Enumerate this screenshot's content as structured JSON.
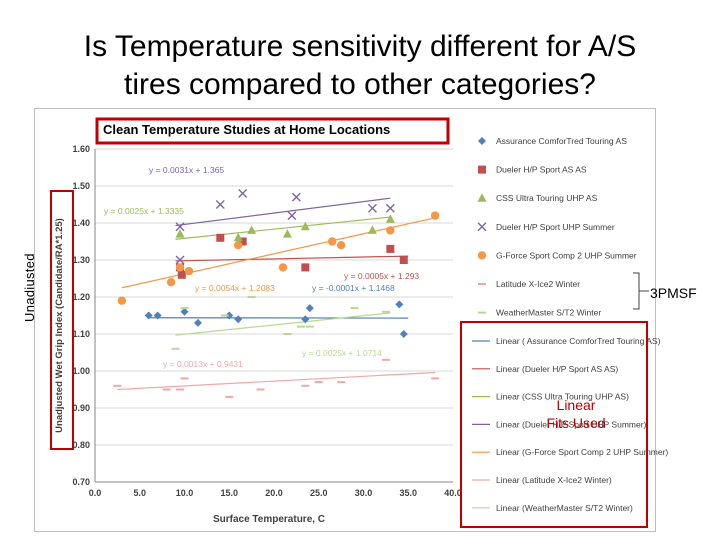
{
  "slide": {
    "title_line1": "Is Temperature sensitivity different for A/S",
    "title_line2": "tires compared to other categories?",
    "side_label": "Unadjusted",
    "callout_3pmsf": "3PMSF",
    "callout_linear_line1": "Linear",
    "callout_linear_line2": "Fits Used"
  },
  "chart_data": {
    "type": "scatter",
    "title": "Clean Temperature Studies at Home Locations",
    "xlabel": "Surface Temperature, C",
    "ylabel": "Unadjusted Wet Grip Index (Candidate/RA*1.25)",
    "xlim": [
      0,
      40
    ],
    "ylim": [
      0.7,
      1.6
    ],
    "xticks": [
      "0.0",
      "5.0",
      "10.0",
      "15.0",
      "20.0",
      "25.0",
      "30.0",
      "35.0",
      "40.0"
    ],
    "yticks": [
      "0.70",
      "0.80",
      "0.90",
      "1.00",
      "1.10",
      "1.20",
      "1.30",
      "1.40",
      "1.50",
      "1.60"
    ],
    "gridlines": "horizontal",
    "series": [
      {
        "name": "Assurance ComforTred Touring AS",
        "color": "#4f81bd",
        "marker": "diamond",
        "x": [
          6.0,
          7.0,
          10.0,
          11.5,
          15.0,
          16.0,
          23.5,
          24.0,
          34.0,
          34.5
        ],
        "y": [
          1.15,
          1.15,
          1.16,
          1.13,
          1.15,
          1.14,
          1.14,
          1.17,
          1.18,
          1.1
        ]
      },
      {
        "name": "Dueler H/P Sport AS AS",
        "color": "#c0504d",
        "marker": "square",
        "x": [
          9.5,
          9.7,
          14.0,
          16.5,
          23.5,
          33.0,
          34.5
        ],
        "y": [
          1.28,
          1.26,
          1.36,
          1.35,
          1.28,
          1.33,
          1.3
        ]
      },
      {
        "name": "CSS Ultra Touring UHP AS",
        "color": "#9bbb59",
        "marker": "triangle",
        "x": [
          9.5,
          16.0,
          17.5,
          21.5,
          23.5,
          31.0,
          33.0
        ],
        "y": [
          1.37,
          1.36,
          1.38,
          1.37,
          1.39,
          1.38,
          1.41
        ]
      },
      {
        "name": "Dueler H/P Sport UHP Summer",
        "color": "#8064a2",
        "marker": "x",
        "x": [
          9.5,
          9.5,
          14.0,
          16.5,
          22.0,
          22.5,
          31.0,
          33.0
        ],
        "y": [
          1.39,
          1.3,
          1.45,
          1.48,
          1.42,
          1.47,
          1.44,
          1.44
        ]
      },
      {
        "name": "G-Force Sport Comp 2 UHP Summer",
        "color": "#f79646",
        "marker": "circle",
        "x": [
          3.0,
          8.5,
          9.5,
          10.5,
          16.0,
          21.0,
          26.5,
          27.5,
          33.0,
          38.0
        ],
        "y": [
          1.19,
          1.24,
          1.28,
          1.27,
          1.34,
          1.28,
          1.35,
          1.34,
          1.38,
          1.42
        ]
      },
      {
        "name": "Latitude X-Ice2 Winter",
        "color": "#f2a7a7",
        "marker": "dash",
        "x": [
          2.5,
          8.0,
          9.5,
          10.0,
          15.0,
          18.5,
          23.5,
          25.0,
          27.5,
          32.5,
          38.0
        ],
        "y": [
          0.96,
          0.95,
          0.95,
          0.98,
          0.93,
          0.95,
          0.96,
          0.97,
          0.97,
          1.03,
          0.98
        ]
      },
      {
        "name": "WeatherMaster S/T2 Winter",
        "color": "#b8d98f",
        "marker": "dash",
        "x": [
          9.0,
          10.0,
          14.5,
          17.5,
          21.5,
          23.0,
          24.0,
          29.0,
          32.5
        ],
        "y": [
          1.06,
          1.17,
          1.15,
          1.2,
          1.1,
          1.12,
          1.12,
          1.17,
          1.16
        ]
      }
    ],
    "fit_lines": [
      {
        "name": "Linear ( Assurance ComforTred Touring AS)",
        "color": "#4f81bd",
        "x": [
          6,
          35
        ],
        "y": [
          1.144,
          1.143
        ],
        "equation": "y = -0.0001x + 1.1468"
      },
      {
        "name": "Linear (Dueler H/P Sport AS AS)",
        "color": "#c0504d",
        "x": [
          9,
          35
        ],
        "y": [
          1.2975,
          1.3105
        ],
        "equation": "y = 0.0005x + 1.293"
      },
      {
        "name": "Linear (CSS Ultra Touring UHP AS)",
        "color": "#9bbb59",
        "x": [
          9,
          33
        ],
        "y": [
          1.356,
          1.416
        ],
        "equation": "y = 0.0025x + 1.3335"
      },
      {
        "name": "Linear (Dueler H/P Sport UHP Summer)",
        "color": "#8064a2",
        "x": [
          9,
          33
        ],
        "y": [
          1.393,
          1.467
        ],
        "equation": "y = 0.0031x + 1.365"
      },
      {
        "name": "Linear (G-Force Sport Comp 2 UHP Summer)",
        "color": "#f79646",
        "x": [
          3,
          38
        ],
        "y": [
          1.225,
          1.414
        ],
        "equation": "y = 0.0054x + 1.2083"
      },
      {
        "name": "Linear (Latitude X-Ice2 Winter)",
        "color": "#f2a7a7",
        "x": [
          2.5,
          38
        ],
        "y": [
          0.95,
          0.996
        ],
        "equation": "y = 0.0013x + 0.9431"
      },
      {
        "name": "Linear (WeatherMaster S/T2 Winter)",
        "color": "#b8d98f",
        "x": [
          9,
          33
        ],
        "y": [
          1.097,
          1.157
        ],
        "equation": "y = 0.0025x + 1.0714"
      }
    ],
    "legend_position": "right"
  },
  "colors": {
    "highlight": "#c00000",
    "grid": "#d9d9d9",
    "title_text": "#000000"
  }
}
